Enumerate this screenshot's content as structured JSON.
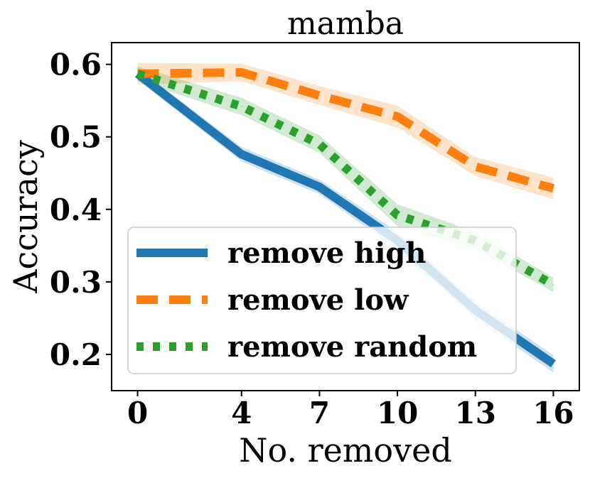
{
  "chart_data": {
    "type": "line",
    "title": "mamba",
    "xlabel": "No. removed",
    "ylabel": "Accuracy",
    "x": [
      0,
      4,
      7,
      10,
      13,
      16
    ],
    "xlim": [
      -1,
      17
    ],
    "ylim": [
      0.15,
      0.63
    ],
    "xticks": [
      0,
      4,
      7,
      10,
      13,
      16
    ],
    "yticks": [
      0.2,
      0.3,
      0.4,
      0.5,
      0.6
    ],
    "ytick_labels": [
      "0.2",
      "0.3",
      "0.4",
      "0.5",
      "0.6"
    ],
    "xtick_labels": [
      "0",
      "4",
      "7",
      "10",
      "13",
      "16"
    ],
    "legend_position": "lower-left",
    "series": [
      {
        "name": "remove high",
        "color": "#1f77b4",
        "style": "solid",
        "values": [
          0.587,
          0.476,
          0.431,
          0.357,
          0.261,
          0.187
        ],
        "band": [
          0.008,
          0.01,
          0.01,
          0.012,
          0.012,
          0.012
        ]
      },
      {
        "name": "remove low",
        "color": "#ff7f0e",
        "style": "dashed",
        "values": [
          0.587,
          0.589,
          0.557,
          0.528,
          0.459,
          0.429
        ],
        "band": [
          0.015,
          0.012,
          0.013,
          0.015,
          0.013,
          0.015
        ]
      },
      {
        "name": "remove random",
        "color": "#2ca02c",
        "style": "dotted",
        "values": [
          0.587,
          0.542,
          0.49,
          0.392,
          0.357,
          0.296
        ],
        "band": [
          0.01,
          0.012,
          0.012,
          0.015,
          0.012,
          0.01
        ]
      }
    ]
  }
}
